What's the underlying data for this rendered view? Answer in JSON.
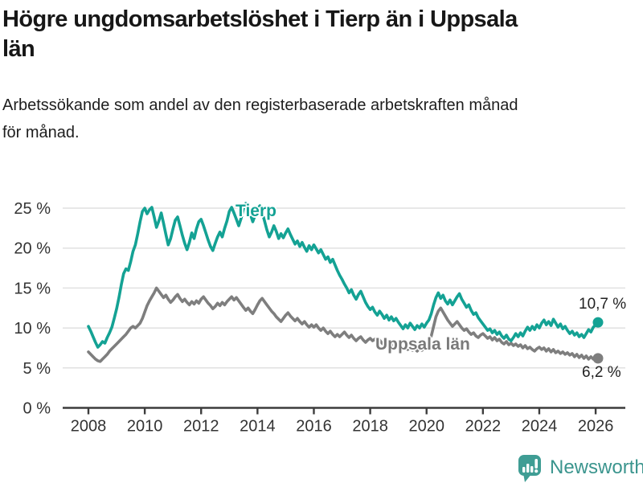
{
  "header": {
    "title": "Högre ungdomsarbetslöshet i Tierp än i Uppsala\nlän",
    "subtitle": "Arbetssökande som andel av den registerbaserade arbetskraften månad\nför månad."
  },
  "footer": {
    "brand": "Newsworthy",
    "logo_icon": "bar-chart-speech-bubble-icon"
  },
  "colors": {
    "tierp": "#14a294",
    "uppsala": "#7e7e7e",
    "grid": "#e1e1e1",
    "axis": "#3c3c3c",
    "tick_text": "#333333",
    "brand": "#3b958e"
  },
  "chart_data": {
    "type": "line",
    "title": "Högre ungdomsarbetslöshet i Tierp än i Uppsala län",
    "xlabel": "",
    "ylabel": "Arbetssökande som andel av den registerbaserade arbetskraften",
    "x_ticks": [
      2008,
      2010,
      2012,
      2014,
      2016,
      2018,
      2020,
      2022,
      2024,
      2026
    ],
    "y_ticks": [
      0,
      5,
      10,
      15,
      20,
      25
    ],
    "y_tick_suffix": " %",
    "ylim": [
      0,
      26.5
    ],
    "xlim": [
      2007.1,
      2027.1
    ],
    "grid": true,
    "legend_position": "inline-labels",
    "series": [
      {
        "name": "Uppsala län",
        "color": "#7e7e7e",
        "start_year": 2008,
        "step_months": 1,
        "end_label": "6,2 %",
        "end_value": 6.2,
        "values": [
          7.0,
          6.7,
          6.4,
          6.1,
          5.9,
          5.8,
          6.1,
          6.4,
          6.7,
          7.1,
          7.4,
          7.7,
          8.0,
          8.3,
          8.6,
          8.9,
          9.2,
          9.6,
          10.0,
          10.2,
          10.0,
          10.3,
          10.6,
          11.2,
          12.0,
          12.8,
          13.4,
          13.9,
          14.4,
          15.0,
          14.6,
          14.2,
          13.8,
          14.1,
          13.6,
          13.2,
          13.5,
          13.9,
          14.2,
          13.7,
          13.3,
          13.6,
          13.2,
          12.9,
          13.3,
          13.0,
          13.4,
          13.1,
          13.6,
          13.9,
          13.5,
          13.1,
          12.8,
          12.4,
          12.7,
          13.1,
          12.8,
          13.2,
          12.9,
          13.3,
          13.6,
          13.9,
          13.5,
          13.8,
          13.4,
          13.0,
          12.6,
          12.2,
          12.5,
          12.1,
          11.8,
          12.3,
          12.9,
          13.4,
          13.7,
          13.3,
          12.9,
          12.5,
          12.1,
          11.8,
          11.4,
          11.1,
          10.8,
          11.2,
          11.6,
          11.9,
          11.5,
          11.2,
          10.9,
          11.2,
          10.8,
          10.5,
          10.8,
          10.4,
          10.1,
          10.4,
          10.1,
          10.4,
          10.0,
          9.7,
          10.0,
          9.6,
          9.3,
          9.6,
          9.2,
          8.9,
          9.2,
          8.9,
          9.2,
          9.5,
          9.1,
          8.8,
          9.1,
          8.7,
          8.4,
          8.7,
          8.9,
          8.5,
          8.2,
          8.5,
          8.7,
          8.4,
          8.6,
          8.2,
          8.5,
          8.1,
          7.9,
          8.2,
          7.8,
          8.0,
          7.7,
          7.9,
          7.6,
          7.8,
          7.4,
          7.6,
          7.3,
          7.5,
          7.2,
          7.4,
          7.1,
          7.4,
          7.2,
          7.5,
          7.8,
          8.2,
          9.0,
          10.2,
          11.4,
          12.1,
          12.5,
          12.0,
          11.5,
          11.0,
          10.6,
          10.2,
          10.5,
          10.8,
          10.4,
          10.0,
          9.7,
          9.9,
          9.5,
          9.2,
          9.4,
          9.0,
          8.8,
          9.1,
          9.3,
          9.0,
          8.7,
          8.9,
          8.5,
          8.8,
          8.4,
          8.6,
          8.2,
          8.0,
          8.3,
          7.9,
          8.1,
          7.8,
          8.0,
          7.7,
          7.9,
          7.5,
          7.8,
          7.4,
          7.6,
          7.3,
          7.1,
          7.4,
          7.6,
          7.3,
          7.5,
          7.1,
          7.4,
          7.0,
          7.3,
          6.9,
          7.1,
          6.8,
          7.0,
          6.7,
          6.9,
          6.6,
          6.8,
          6.4,
          6.7,
          6.3,
          6.6,
          6.2,
          6.5,
          6.1,
          6.4,
          6.1,
          6.4,
          6.2
        ]
      },
      {
        "name": "Tierp",
        "color": "#14a294",
        "start_year": 2008,
        "step_months": 1,
        "end_label": "10,7 %",
        "end_value": 10.7,
        "values": [
          10.2,
          9.6,
          8.9,
          8.2,
          7.6,
          7.9,
          8.3,
          8.1,
          8.8,
          9.4,
          10.1,
          11.2,
          12.4,
          13.8,
          15.4,
          16.8,
          17.4,
          17.2,
          18.3,
          19.6,
          20.4,
          21.8,
          23.3,
          24.6,
          25.0,
          24.3,
          24.8,
          25.1,
          23.9,
          22.6,
          23.4,
          24.4,
          23.1,
          21.7,
          20.4,
          21.2,
          22.4,
          23.5,
          23.9,
          22.8,
          21.6,
          20.6,
          19.8,
          20.7,
          21.9,
          21.2,
          22.4,
          23.3,
          23.6,
          22.8,
          21.9,
          21.0,
          20.2,
          19.7,
          20.6,
          21.4,
          22.0,
          21.4,
          22.5,
          23.4,
          24.6,
          25.1,
          24.4,
          23.6,
          22.8,
          23.7,
          24.9,
          25.6,
          25.0,
          24.2,
          23.3,
          24.1,
          24.9,
          25.3,
          24.5,
          23.4,
          22.3,
          21.4,
          22.0,
          22.8,
          22.1,
          21.2,
          21.8,
          21.3,
          21.9,
          22.4,
          21.7,
          21.1,
          20.5,
          20.9,
          20.2,
          20.7,
          20.1,
          19.6,
          20.3,
          19.8,
          20.4,
          19.9,
          19.4,
          19.8,
          19.2,
          18.6,
          18.9,
          18.2,
          18.6,
          17.9,
          17.2,
          16.6,
          16.1,
          15.5,
          15.0,
          14.4,
          14.8,
          14.1,
          13.6,
          14.2,
          14.6,
          13.9,
          13.2,
          12.7,
          12.3,
          12.6,
          12.0,
          11.6,
          12.1,
          11.7,
          11.2,
          11.6,
          11.0,
          11.4,
          10.9,
          11.2,
          10.7,
          10.3,
          9.9,
          10.4,
          10.0,
          10.6,
          10.2,
          9.8,
          10.3,
          10.0,
          10.5,
          10.1,
          10.6,
          11.0,
          11.8,
          12.9,
          13.8,
          14.4,
          13.7,
          14.1,
          13.4,
          13.0,
          13.5,
          12.9,
          13.4,
          13.9,
          14.3,
          13.6,
          13.1,
          12.6,
          12.9,
          12.2,
          11.7,
          11.9,
          11.3,
          10.9,
          10.5,
          10.1,
          9.7,
          9.9,
          9.4,
          9.7,
          9.2,
          9.5,
          9.0,
          8.7,
          9.1,
          8.6,
          8.4,
          8.8,
          9.3,
          8.9,
          9.4,
          9.0,
          9.6,
          10.1,
          9.7,
          10.2,
          9.8,
          10.4,
          10.0,
          10.6,
          11.0,
          10.4,
          10.8,
          10.3,
          11.1,
          10.6,
          10.1,
          10.5,
          9.9,
          10.2,
          9.7,
          9.3,
          9.6,
          9.1,
          9.4,
          8.9,
          9.2,
          8.8,
          9.3,
          9.8,
          9.5,
          10.1,
          10.4,
          10.7
        ]
      }
    ]
  }
}
